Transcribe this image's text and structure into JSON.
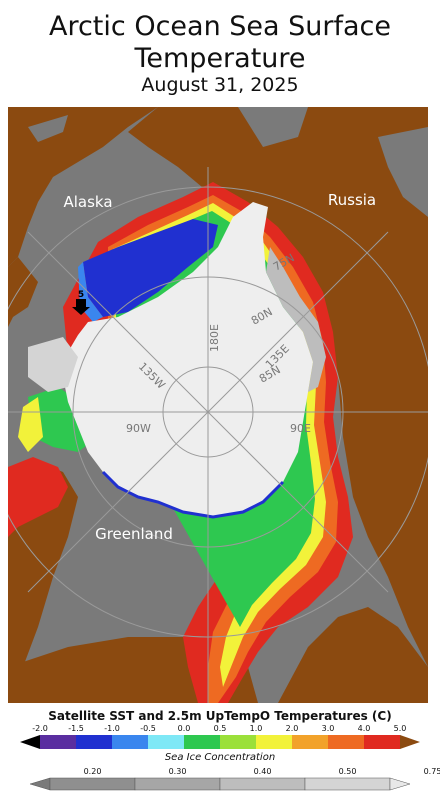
{
  "header": {
    "title_line1": "Arctic Ocean Sea Surface",
    "title_line2": "Temperature",
    "date": "August 31, 2025"
  },
  "map": {
    "region_labels": {
      "alaska": "Alaska",
      "russia": "Russia",
      "greenland": "Greenland"
    },
    "graticule_labels": {
      "lat_75": "75N",
      "lat_80": "80N",
      "lat_85": "85N",
      "lon_180": "180E",
      "lon_135e": "135E",
      "lon_135w": "135W",
      "lon_90w": "90W",
      "lon_90e": "90E"
    },
    "marker_label": "5",
    "colors": {
      "land": "#8b4a10",
      "ocean_background": "#7a7a7a",
      "sea_ice": "#eeeeee",
      "grid": "#9a9a9a"
    }
  },
  "legend": {
    "sst_title": "Satellite SST and 2.5m UpTempO Temperatures (C)",
    "sst_ticks": [
      "-2.0",
      "-1.5",
      "-1.0",
      "-0.5",
      "0.0",
      "0.5",
      "1.0",
      "2.0",
      "3.0",
      "4.0",
      "5.0"
    ],
    "sst_colors": [
      "#000000",
      "#5a2ea0",
      "#2030d0",
      "#3a86ee",
      "#7ee8f6",
      "#2ec850",
      "#9be03a",
      "#f2f23a",
      "#f2a22a",
      "#ee6a22",
      "#e02a20",
      "#8b4a10"
    ],
    "ice_title": "Sea Ice Concentration",
    "ice_ticks": [
      "0.20",
      "0.30",
      "0.40",
      "0.50",
      "0.75"
    ],
    "ice_colors": [
      "#7a7a7a",
      "#8f8f8f",
      "#a6a6a6",
      "#bdbdbd",
      "#d4d4d4",
      "#e8e8e8"
    ]
  }
}
